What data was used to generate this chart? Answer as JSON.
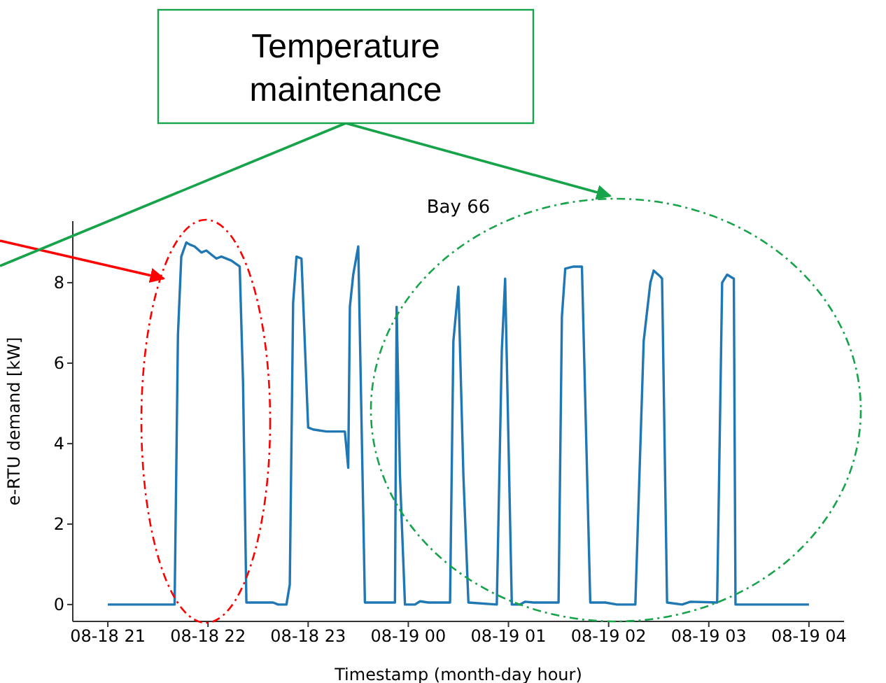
{
  "chart_data": {
    "type": "line",
    "title": "Bay 66",
    "xlabel": "Timestamp (month-day hour)",
    "ylabel": "e-RTU demand [kW]",
    "annotations": [
      "Temperature maintenance"
    ],
    "x": [
      "--08-18T21:00",
      "--08-18T21:40",
      "--08-18T21:42",
      "--08-18T21:44",
      "--08-18T21:47",
      "--08-18T21:49",
      "--08-18T21:52",
      "--08-18T21:56",
      "--08-18T21:59",
      "--08-18T22:05",
      "--08-18T22:08",
      "--08-18T22:14",
      "--08-18T22:19",
      "--08-18T22:21",
      "--08-18T22:23",
      "--08-18T22:39",
      "--08-18T22:42",
      "--08-18T22:47",
      "--08-18T22:49",
      "--08-18T22:51",
      "--08-18T22:53",
      "--08-18T22:56",
      "--08-18T23:00",
      "--08-18T23:03",
      "--08-18T23:11",
      "--08-18T23:22",
      "--08-18T23:24",
      "--08-18T23:25",
      "--08-18T23:27",
      "--08-18T23:30",
      "--08-18T23:34",
      "--08-18T23:52",
      "--08-18T23:53",
      "--08-18T23:55",
      "--08-18T23:58",
      "--08-19T00:04",
      "--08-19T00:07",
      "--08-19T00:12",
      "--08-19T00:25",
      "--08-19T00:27",
      "--08-19T00:30",
      "--08-19T00:33",
      "--08-19T00:36",
      "--08-19T00:53",
      "--08-19T00:56",
      "--08-19T00:58",
      "--08-19T01:02",
      "--08-19T01:07",
      "--08-19T01:10",
      "--08-19T01:15",
      "--08-19T01:30",
      "--08-19T01:32",
      "--08-19T01:34",
      "--08-19T01:39",
      "--08-19T01:44",
      "--08-19T01:49",
      "--08-19T01:58",
      "--08-19T02:05",
      "--08-19T02:16",
      "--08-19T02:21",
      "--08-19T02:25",
      "--08-19T02:27",
      "--08-19T02:31",
      "--08-19T02:32",
      "--08-19T02:35",
      "--08-19T02:44",
      "--08-19T02:49",
      "--08-19T03:05",
      "--08-19T03:08",
      "--08-19T03:11",
      "--08-19T03:15",
      "--08-19T03:16",
      "--08-19T04:00"
    ],
    "series": [
      {
        "color": "#1f77b4",
        "values": [
          0,
          0,
          6.7,
          8.65,
          9.0,
          8.95,
          8.9,
          8.75,
          8.8,
          8.6,
          8.65,
          8.55,
          8.4,
          5.5,
          0.05,
          0.05,
          0,
          0,
          0.5,
          7.5,
          8.65,
          8.6,
          4.4,
          4.35,
          4.3,
          4.3,
          3.4,
          7.4,
          8.2,
          8.9,
          0.05,
          0.05,
          7.4,
          3.2,
          0,
          0,
          0.08,
          0.05,
          0.05,
          6.55,
          7.9,
          3.2,
          0.05,
          0,
          6.3,
          8.1,
          0,
          0,
          0.07,
          0.05,
          0.05,
          7.15,
          8.35,
          8.4,
          8.4,
          0.05,
          0.05,
          0,
          0,
          6.55,
          8.0,
          8.3,
          8.15,
          8.1,
          0.05,
          0,
          0.07,
          0.05,
          8.0,
          8.2,
          8.1,
          0,
          0
        ]
      }
    ],
    "xlim": [
      "--08-18T20:39",
      "--08-19T04:21"
    ],
    "ylim": [
      -0.42,
      9.53
    ],
    "xticks": [
      {
        "value": "--08-18T21:00",
        "label": "08-18 21"
      },
      {
        "value": "--08-18T22:00",
        "label": "08-18 22"
      },
      {
        "value": "--08-18T23:00",
        "label": "08-18 23"
      },
      {
        "value": "--08-19T00:00",
        "label": "08-19 00"
      },
      {
        "value": "--08-19T01:00",
        "label": "08-19 01"
      },
      {
        "value": "--08-19T02:00",
        "label": "08-19 02"
      },
      {
        "value": "--08-19T03:00",
        "label": "08-19 03"
      },
      {
        "value": "--08-19T04:00",
        "label": "08-19 04"
      }
    ],
    "yticks": [
      0,
      2,
      4,
      6,
      8
    ],
    "grid": false,
    "legend": false,
    "marker": "none",
    "line_style": "solid"
  }
}
